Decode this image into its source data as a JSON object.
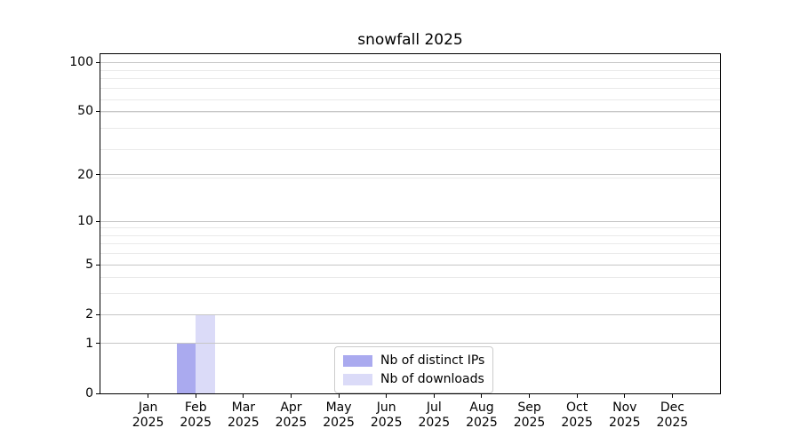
{
  "chart_data": {
    "type": "bar",
    "title": "snowfall 2025",
    "xlabel": "",
    "ylabel": "",
    "categories": [
      "Jan 2025",
      "Feb 2025",
      "Mar 2025",
      "Apr 2025",
      "May 2025",
      "Jun 2025",
      "Jul 2025",
      "Aug 2025",
      "Sep 2025",
      "Oct 2025",
      "Nov 2025",
      "Dec 2025"
    ],
    "series": [
      {
        "name": "Nb of distinct IPs",
        "color": "#aaaaef",
        "values": [
          0,
          1,
          0,
          0,
          0,
          0,
          0,
          0,
          0,
          0,
          0,
          0
        ]
      },
      {
        "name": "Nb of downloads",
        "color": "#dbdbf8",
        "values": [
          0,
          2,
          0,
          0,
          0,
          0,
          0,
          0,
          0,
          0,
          0,
          0
        ]
      }
    ],
    "y_axis": {
      "scale": "log1p",
      "ticks": [
        0,
        1,
        2,
        5,
        10,
        20,
        50,
        100
      ],
      "minor_gridlines": [
        3,
        4,
        6,
        7,
        8,
        9,
        19,
        29,
        39,
        49,
        59,
        69,
        79,
        89
      ],
      "ylim": [
        0,
        112
      ]
    },
    "legend": {
      "position": "lower center",
      "entries": [
        "Nb of distinct IPs",
        "Nb of downloads"
      ]
    },
    "grid": "both",
    "colors": {
      "grid_major": "#c6c6c6",
      "grid_minor": "#eaeaea",
      "axis": "#000000",
      "text": "#000000",
      "background": "#ffffff"
    }
  }
}
